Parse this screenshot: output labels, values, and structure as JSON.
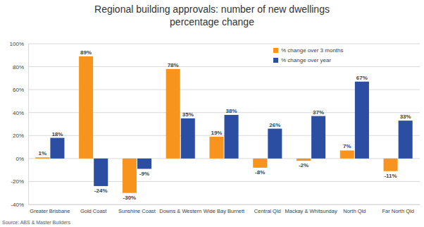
{
  "chart_data": {
    "type": "bar",
    "title": "Regional building approvals: number of new dwellings percentage change",
    "source": "Source: ABS & Master Builders",
    "categories": [
      "Greater Brisbane",
      "Gold Coast",
      "Sunshine Coast",
      "Downs & Western",
      "Wide Bay Burnett",
      "Central Qld",
      "Mackay & Whitsunday",
      "North Qld",
      "Far North Qld"
    ],
    "series": [
      {
        "name": "% change over 3 months",
        "color": "#f7941d",
        "values": [
          1,
          89,
          -30,
          78,
          19,
          -8,
          -2,
          7,
          -11
        ],
        "value_labels": [
          "1%",
          "89%",
          "-30%",
          "78%",
          "19%",
          "-8%",
          "-2%",
          "7%",
          "-11%"
        ]
      },
      {
        "name": "% change over year",
        "color": "#2b4ea2",
        "values": [
          18,
          -24,
          -9,
          35,
          38,
          26,
          37,
          67,
          33
        ],
        "value_labels": [
          "18%",
          "-24%",
          "-9%",
          "35%",
          "38%",
          "26%",
          "37%",
          "67%",
          "33%"
        ]
      }
    ],
    "ylim": [
      -40,
      100
    ],
    "yticks": [
      {
        "value": -40,
        "label": "-40%"
      },
      {
        "value": -20,
        "label": "-20%"
      },
      {
        "value": 0,
        "label": "0%"
      },
      {
        "value": 20,
        "label": "20%"
      },
      {
        "value": 40,
        "label": "40%"
      },
      {
        "value": 60,
        "label": "60%"
      },
      {
        "value": 80,
        "label": "80%"
      },
      {
        "value": 100,
        "label": "100%"
      }
    ],
    "grid": true,
    "legend": "top-right",
    "data_labels": true
  }
}
